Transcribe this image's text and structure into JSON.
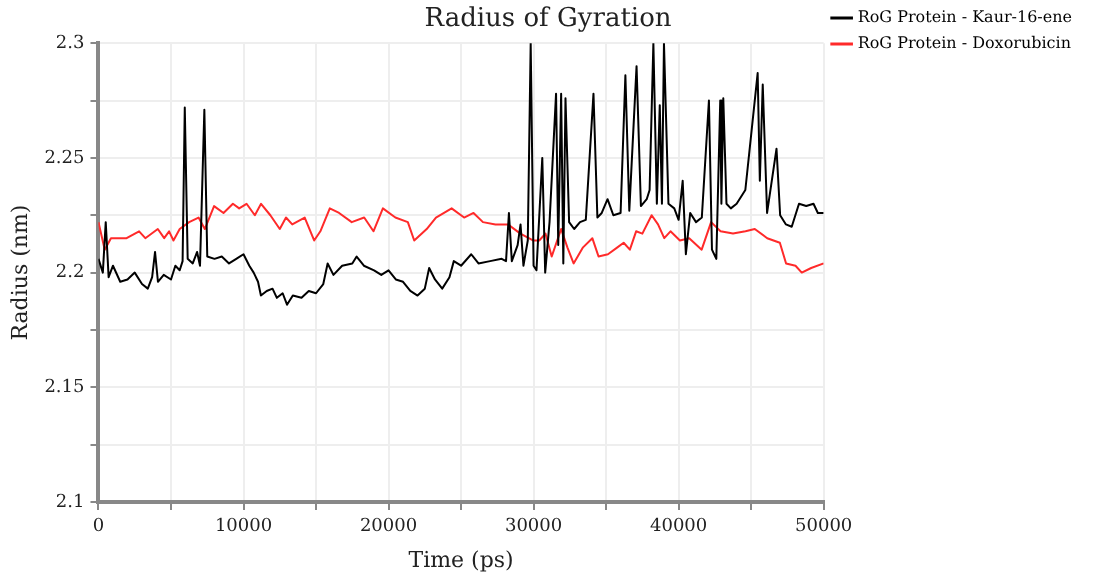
{
  "chart_data": {
    "type": "line",
    "title": "Radius of Gyration",
    "xlabel": "Time (ps)",
    "ylabel": "Radius (nm)",
    "xlim": [
      0,
      50000
    ],
    "xticks": [
      0,
      {
        "value": 5000,
        "label": null
      },
      10000,
      {
        "value": 15000,
        "label": null
      },
      20000,
      {
        "value": 25000,
        "label": null
      },
      30000,
      {
        "value": 35000,
        "label": null
      },
      40000,
      {
        "value": 45000,
        "label": null
      },
      50000
    ],
    "ylim": [
      2.1,
      2.3
    ],
    "yticks": [
      2.1,
      {
        "value": 2.125,
        "label": null
      },
      2.15,
      {
        "value": 2.175,
        "label": null
      },
      2.2,
      {
        "value": 2.225,
        "label": null
      },
      2.25,
      {
        "value": 2.275,
        "label": null
      },
      2.3
    ],
    "grid": true,
    "legend": "top right",
    "marker": "none",
    "line_style": "solid",
    "series": [
      {
        "name": "RoG Protein - Kaur-16-ene",
        "color": "#000000",
        "x": [
          0,
          300,
          500,
          700,
          1000,
          1500,
          2000,
          2500,
          3000,
          3400,
          3700,
          3900,
          4100,
          4500,
          5000,
          5300,
          5600,
          5800,
          5950,
          6150,
          6500,
          6800,
          7000,
          7300,
          7500,
          8000,
          8500,
          9000,
          9500,
          10000,
          10400,
          10700,
          11000,
          11200,
          11600,
          12000,
          12300,
          12700,
          13000,
          13400,
          14000,
          14500,
          15000,
          15500,
          15800,
          16200,
          16800,
          17500,
          17800,
          18300,
          19000,
          19500,
          20000,
          20500,
          21000,
          21500,
          22000,
          22500,
          22800,
          23200,
          23700,
          24200,
          24500,
          25000,
          25700,
          26200,
          27000,
          27800,
          28100,
          28300,
          28500,
          28900,
          29100,
          29300,
          29600,
          29800,
          30000,
          30200,
          30600,
          30800,
          31100,
          31550,
          31700,
          31900,
          32050,
          32200,
          32450,
          32800,
          33200,
          33600,
          34130,
          34400,
          34700,
          35100,
          35500,
          36000,
          36330,
          36600,
          37100,
          37400,
          37800,
          38000,
          38260,
          38500,
          38700,
          38850,
          38990,
          39300,
          39700,
          40000,
          40280,
          40500,
          40800,
          41200,
          41600,
          42090,
          42300,
          42600,
          42870,
          42950,
          43080,
          43300,
          43600,
          44000,
          44600,
          45450,
          45600,
          45800,
          46100,
          46750,
          47000,
          47400,
          47800,
          48300,
          48800,
          49300,
          49600,
          50000
        ],
        "values": [
          2.206,
          2.2,
          2.222,
          2.198,
          2.203,
          2.196,
          2.197,
          2.2,
          2.195,
          2.193,
          2.198,
          2.209,
          2.196,
          2.199,
          2.197,
          2.203,
          2.201,
          2.205,
          2.272,
          2.206,
          2.204,
          2.209,
          2.203,
          2.271,
          2.207,
          2.206,
          2.207,
          2.204,
          2.206,
          2.208,
          2.203,
          2.2,
          2.196,
          2.19,
          2.192,
          2.193,
          2.189,
          2.191,
          2.186,
          2.19,
          2.189,
          2.192,
          2.191,
          2.195,
          2.204,
          2.199,
          2.203,
          2.204,
          2.207,
          2.203,
          2.201,
          2.199,
          2.201,
          2.197,
          2.196,
          2.192,
          2.19,
          2.193,
          2.202,
          2.197,
          2.193,
          2.198,
          2.205,
          2.203,
          2.208,
          2.204,
          2.205,
          2.206,
          2.205,
          2.226,
          2.205,
          2.212,
          2.221,
          2.203,
          2.214,
          2.3,
          2.203,
          2.201,
          2.25,
          2.2,
          2.222,
          2.278,
          2.212,
          2.278,
          2.204,
          2.276,
          2.222,
          2.219,
          2.222,
          2.223,
          2.278,
          2.224,
          2.226,
          2.232,
          2.225,
          2.226,
          2.286,
          2.227,
          2.29,
          2.229,
          2.232,
          2.236,
          2.3,
          2.23,
          2.273,
          2.23,
          2.3,
          2.23,
          2.228,
          2.223,
          2.24,
          2.208,
          2.226,
          2.222,
          2.224,
          2.275,
          2.21,
          2.206,
          2.275,
          2.23,
          2.276,
          2.23,
          2.228,
          2.23,
          2.236,
          2.287,
          2.24,
          2.282,
          2.226,
          2.254,
          2.225,
          2.221,
          2.22,
          2.23,
          2.229,
          2.23,
          2.226,
          2.226
        ]
      },
      {
        "name": "RoG Protein - Doxorubicin",
        "color": "#ff2a2a",
        "x": [
          0,
          431,
          862,
          1940,
          2800,
          3230,
          4090,
          4530,
          4870,
          5170,
          5600,
          6250,
          6900,
          7330,
          7970,
          8620,
          9270,
          9700,
          10210,
          10780,
          11210,
          11850,
          12500,
          12930,
          13360,
          14220,
          14870,
          15300,
          15950,
          16590,
          17460,
          18320,
          18960,
          19610,
          20470,
          21330,
          21770,
          22630,
          23270,
          24350,
          25210,
          25860,
          26510,
          27370,
          28230,
          29090,
          29960,
          30390,
          30820,
          31250,
          31900,
          32330,
          32760,
          33410,
          34050,
          34480,
          35130,
          35780,
          36210,
          36640,
          37070,
          37500,
          38140,
          38580,
          39010,
          39440,
          40090,
          40730,
          41590,
          42240,
          42890,
          43750,
          44610,
          45250,
          46110,
          46980,
          47410,
          48060,
          48490,
          49140,
          50000
        ],
        "values": [
          2.222,
          2.21,
          2.215,
          2.215,
          2.218,
          2.215,
          2.219,
          2.215,
          2.218,
          2.214,
          2.219,
          2.222,
          2.224,
          2.219,
          2.229,
          2.226,
          2.23,
          2.228,
          2.23,
          2.225,
          2.23,
          2.225,
          2.219,
          2.224,
          2.221,
          2.224,
          2.214,
          2.218,
          2.228,
          2.226,
          2.222,
          2.224,
          2.218,
          2.228,
          2.224,
          2.222,
          2.214,
          2.219,
          2.224,
          2.228,
          2.224,
          2.226,
          2.222,
          2.221,
          2.221,
          2.217,
          2.214,
          2.214,
          2.217,
          2.207,
          2.219,
          2.211,
          2.204,
          2.211,
          2.215,
          2.207,
          2.208,
          2.211,
          2.213,
          2.21,
          2.218,
          2.217,
          2.225,
          2.221,
          2.215,
          2.218,
          2.214,
          2.215,
          2.21,
          2.222,
          2.218,
          2.217,
          2.218,
          2.219,
          2.215,
          2.213,
          2.204,
          2.203,
          2.2,
          2.202,
          2.204
        ]
      }
    ]
  }
}
